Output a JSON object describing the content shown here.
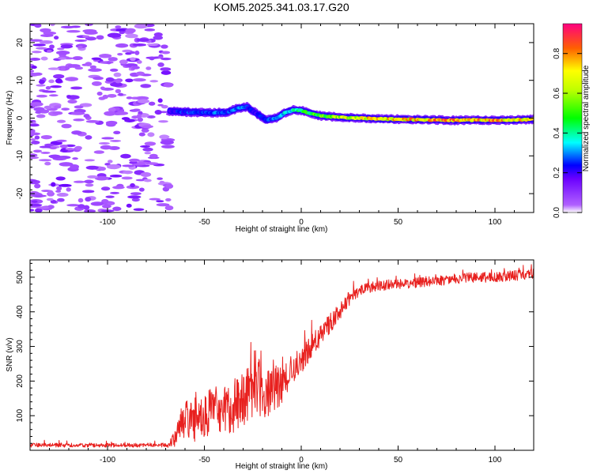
{
  "title": "KOM5.2025.341.03.17.G20",
  "colors": {
    "series": "#e8201e",
    "axis": "#000000"
  },
  "chart_data": [
    {
      "type": "heatmap",
      "name": "spectrogram",
      "xlabel": "Height of straight line (km)",
      "ylabel": "Frequency (Hz)",
      "xlim": [
        -140,
        120
      ],
      "ylim": [
        -25,
        25
      ],
      "xticks": [
        -100,
        -50,
        0,
        50,
        100
      ],
      "xtick_labels": [
        "-100",
        "-50",
        "0",
        "50",
        "100"
      ],
      "yticks": [
        -20,
        -10,
        0,
        10,
        20
      ],
      "ytick_labels": [
        "-20",
        "-10",
        "0",
        "10",
        "20"
      ],
      "noise_region_x": [
        -140,
        -68
      ],
      "signal_track": {
        "x": [
          -68,
          -60,
          -52,
          -45,
          -38,
          -33,
          -28,
          -23,
          -18,
          -13,
          -8,
          -4,
          0,
          5,
          10,
          20,
          30,
          40,
          50,
          60,
          70,
          80,
          90,
          100,
          110,
          120
        ],
        "freq": [
          1.8,
          1.6,
          1.5,
          1.4,
          1.6,
          2.6,
          3.0,
          1.2,
          -0.5,
          0.0,
          1.5,
          2.2,
          2.0,
          1.2,
          0.6,
          0.2,
          0.0,
          -0.2,
          -0.3,
          -0.4,
          -0.5,
          -0.6,
          -0.5,
          -0.6,
          -0.5,
          -0.3
        ],
        "amplitude": [
          0.25,
          0.3,
          0.3,
          0.35,
          0.3,
          0.35,
          0.3,
          0.25,
          0.3,
          0.35,
          0.4,
          0.45,
          0.5,
          0.55,
          0.6,
          0.75,
          0.8,
          0.85,
          0.85,
          0.9,
          0.9,
          0.9,
          0.88,
          0.9,
          0.85,
          0.8
        ]
      },
      "colorbar": {
        "label": "Normalized spectral amplitude",
        "ticks": [
          0.0,
          0.2,
          0.4,
          0.6,
          0.8
        ],
        "tick_labels": [
          "0.0",
          "0.2",
          "0.4",
          "0.6",
          "0.8"
        ],
        "range": [
          0,
          0.95
        ]
      }
    },
    {
      "type": "line",
      "name": "snr",
      "xlabel": "Height of straight line (km)",
      "ylabel": "SNR (v/v)",
      "xlim": [
        -140,
        120
      ],
      "ylim": [
        0,
        550
      ],
      "xticks": [
        -100,
        -50,
        0,
        50,
        100
      ],
      "xtick_labels": [
        "-100",
        "-50",
        "0",
        "50",
        "100"
      ],
      "yticks": [
        100,
        200,
        300,
        400,
        500
      ],
      "ytick_labels": [
        "100",
        "200",
        "300",
        "400",
        "500"
      ],
      "series": [
        {
          "name": "SNR",
          "x": [
            -140,
            -100,
            -70,
            -66,
            -63,
            -60,
            -55,
            -50,
            -45,
            -40,
            -35,
            -30,
            -25,
            -22,
            -18,
            -12,
            -8,
            -5,
            0,
            5,
            10,
            15,
            20,
            25,
            30,
            35,
            40,
            50,
            60,
            70,
            80,
            90,
            100,
            110,
            120
          ],
          "mean": [
            15,
            15,
            15,
            30,
            70,
            90,
            80,
            100,
            120,
            110,
            130,
            130,
            170,
            190,
            160,
            180,
            210,
            230,
            260,
            300,
            330,
            370,
            400,
            440,
            460,
            470,
            475,
            480,
            485,
            490,
            495,
            500,
            500,
            505,
            510
          ],
          "spread": [
            6,
            6,
            6,
            25,
            40,
            55,
            55,
            60,
            75,
            70,
            80,
            90,
            100,
            90,
            70,
            60,
            55,
            45,
            40,
            35,
            30,
            30,
            25,
            20,
            15,
            15,
            15,
            15,
            15,
            15,
            15,
            15,
            15,
            15,
            15
          ]
        }
      ]
    }
  ]
}
